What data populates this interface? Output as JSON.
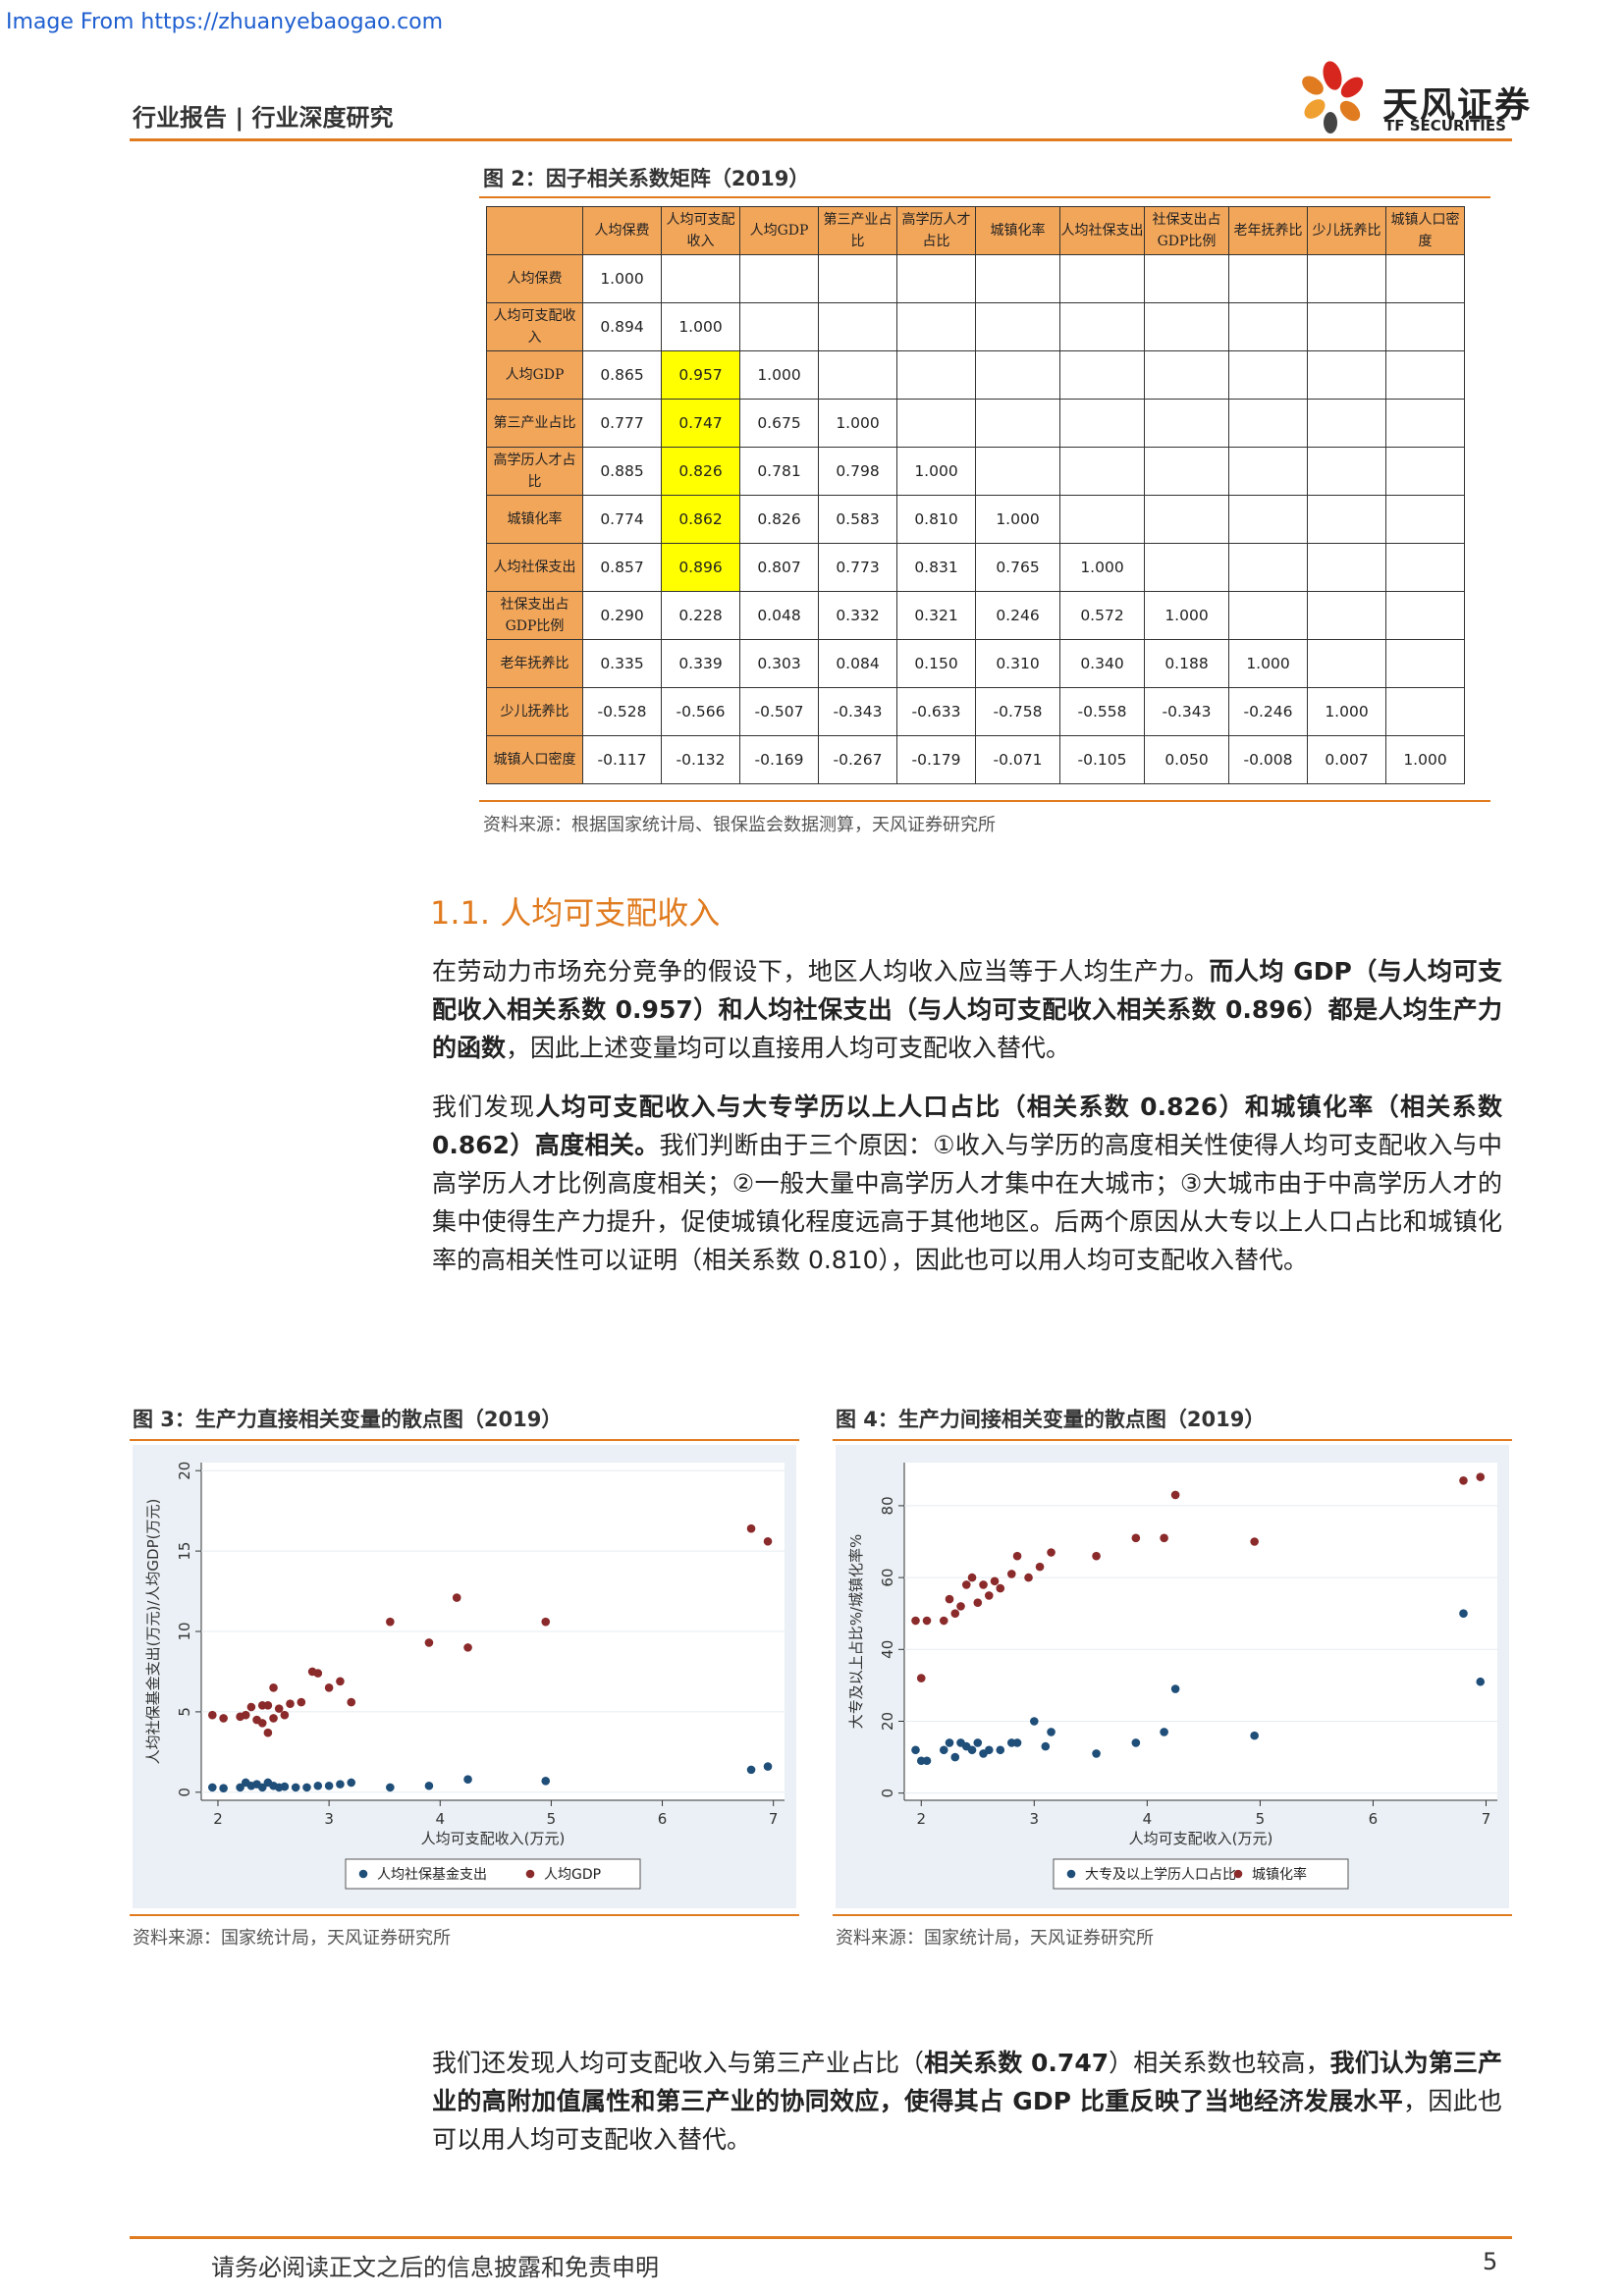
{
  "watermark": "Image From https://zhuanyebaogao.com",
  "header": {
    "left": "行业报告 | 行业深度研究",
    "logo_cn": "天风证券",
    "logo_en": "TF SECURITIES"
  },
  "fig2": {
    "title": "图 2：因子相关系数矩阵（2019）",
    "source": "资料来源：根据国家统计局、银保监会数据测算，天风证券研究所",
    "headers": [
      "人均保费",
      "人均可支配收入",
      "人均GDP",
      "第三产业占比",
      "高学历人才占比",
      "城镇化率",
      "人均社保支出",
      "社保支出占GDP比例",
      "老年抚养比",
      "少儿抚养比",
      "城镇人口密度"
    ],
    "rows": [
      {
        "label": "人均保费",
        "values": [
          "1.000"
        ]
      },
      {
        "label": "人均可支配收入",
        "values": [
          "0.894",
          "1.000"
        ]
      },
      {
        "label": "人均GDP",
        "values": [
          "0.865",
          "0.957",
          "1.000"
        ]
      },
      {
        "label": "第三产业占比",
        "values": [
          "0.777",
          "0.747",
          "0.675",
          "1.000"
        ]
      },
      {
        "label": "高学历人才占比",
        "values": [
          "0.885",
          "0.826",
          "0.781",
          "0.798",
          "1.000"
        ]
      },
      {
        "label": "城镇化率",
        "values": [
          "0.774",
          "0.862",
          "0.826",
          "0.583",
          "0.810",
          "1.000"
        ]
      },
      {
        "label": "人均社保支出",
        "values": [
          "0.857",
          "0.896",
          "0.807",
          "0.773",
          "0.831",
          "0.765",
          "1.000"
        ]
      },
      {
        "label": "社保支出占GDP比例",
        "values": [
          "0.290",
          "0.228",
          "0.048",
          "0.332",
          "0.321",
          "0.246",
          "0.572",
          "1.000"
        ]
      },
      {
        "label": "老年抚养比",
        "values": [
          "0.335",
          "0.339",
          "0.303",
          "0.084",
          "0.150",
          "0.310",
          "0.340",
          "0.188",
          "1.000"
        ]
      },
      {
        "label": "少儿抚养比",
        "values": [
          "-0.528",
          "-0.566",
          "-0.507",
          "-0.343",
          "-0.633",
          "-0.758",
          "-0.558",
          "-0.343",
          "-0.246",
          "1.000"
        ]
      },
      {
        "label": "城镇人口密度",
        "values": [
          "-0.117",
          "-0.132",
          "-0.169",
          "-0.267",
          "-0.179",
          "-0.071",
          "-0.105",
          "0.050",
          "-0.008",
          "0.007",
          "1.000"
        ]
      }
    ],
    "highlight_color": "#ffff00",
    "header_color": "#f2a65a"
  },
  "section": {
    "heading": "1.1. 人均可支配收入",
    "p1_parts": [
      {
        "t": "在劳动力市场充分竞争的假设下，地区人均收入应当等于人均生产力。",
        "b": false
      },
      {
        "t": "而人均 GDP（与人均可支配收入相关系数 0.957）和人均社保支出（与人均可支配收入相关系数 0.896）都是人均生产力的函数",
        "b": true
      },
      {
        "t": "，因此上述变量均可以直接用人均可支配收入替代。",
        "b": false
      }
    ],
    "p2_parts": [
      {
        "t": "我们发现",
        "b": false
      },
      {
        "t": "人均可支配收入与大专学历以上人口占比（相关系数 0.826）和城镇化率（相关系数 0.862）高度相关。",
        "b": true
      },
      {
        "t": "我们判断由于三个原因：①收入与学历的高度相关性使得人均可支配收入与中高学历人才比例高度相关；②一般大量中高学历人才集中在大城市；③大城市由于中高学历人才的集中使得生产力提升，促使城镇化程度远高于其他地区。后两个原因从大专以上人口占比和城镇化率的高相关性可以证明（相关系数 0.810），因此也可以用人均可支配收入替代。",
        "b": false
      }
    ],
    "p3_parts": [
      {
        "t": "我们还发现人均可支配收入与第三产业占比（",
        "b": false
      },
      {
        "t": "相关系数 0.747",
        "b": true
      },
      {
        "t": "）相关系数也较高，",
        "b": false
      },
      {
        "t": "我们认为第三产业的高附加值属性和第三产业的协同效应，使得其占 GDP 比重反映了当地经济发展水平",
        "b": true
      },
      {
        "t": "，因此也可以用人均可支配收入替代。",
        "b": false
      }
    ]
  },
  "fig3": {
    "title": "图 3：生产力直接相关变量的散点图（2019）",
    "source": "资料来源：国家统计局，天风证券研究所"
  },
  "fig4": {
    "title": "图 4：生产力间接相关变量的散点图（2019）",
    "source": "资料来源：国家统计局，天风证券研究所"
  },
  "chart_data": [
    {
      "type": "scatter",
      "xlabel": "人均可支配收入(万元)",
      "ylabel": "人均社保基金支出(万元)/人均GDP(万元)",
      "xticks": [
        2,
        3,
        4,
        5,
        6,
        7
      ],
      "yticks": [
        0,
        5,
        10,
        15,
        20
      ],
      "xlim": [
        1.85,
        7.1
      ],
      "ylim": [
        -0.5,
        20.5
      ],
      "legend": "bottom",
      "series": [
        {
          "name": "人均社保基金支出",
          "color": "#1f4e79",
          "points": [
            [
              1.95,
              0.3
            ],
            [
              2.05,
              0.25
            ],
            [
              2.2,
              0.3
            ],
            [
              2.25,
              0.6
            ],
            [
              2.3,
              0.4
            ],
            [
              2.35,
              0.5
            ],
            [
              2.4,
              0.3
            ],
            [
              2.45,
              0.6
            ],
            [
              2.5,
              0.4
            ],
            [
              2.55,
              0.3
            ],
            [
              2.6,
              0.35
            ],
            [
              2.7,
              0.3
            ],
            [
              2.8,
              0.3
            ],
            [
              2.9,
              0.4
            ],
            [
              3.0,
              0.4
            ],
            [
              3.1,
              0.5
            ],
            [
              3.2,
              0.6
            ],
            [
              3.55,
              0.3
            ],
            [
              3.9,
              0.4
            ],
            [
              4.25,
              0.8
            ],
            [
              4.95,
              0.7
            ],
            [
              6.8,
              1.4
            ],
            [
              6.95,
              1.6
            ]
          ]
        },
        {
          "name": "人均GDP",
          "color": "#8b2a2a",
          "points": [
            [
              1.95,
              4.8
            ],
            [
              2.05,
              4.6
            ],
            [
              2.2,
              4.7
            ],
            [
              2.25,
              4.8
            ],
            [
              2.3,
              5.3
            ],
            [
              2.35,
              4.5
            ],
            [
              2.4,
              5.4
            ],
            [
              2.4,
              4.3
            ],
            [
              2.45,
              3.7
            ],
            [
              2.45,
              5.4
            ],
            [
              2.5,
              6.5
            ],
            [
              2.5,
              4.6
            ],
            [
              2.55,
              5.2
            ],
            [
              2.6,
              4.8
            ],
            [
              2.65,
              5.5
            ],
            [
              2.75,
              5.6
            ],
            [
              2.85,
              7.5
            ],
            [
              2.9,
              7.4
            ],
            [
              3.0,
              6.5
            ],
            [
              3.1,
              6.9
            ],
            [
              3.2,
              5.6
            ],
            [
              3.55,
              10.6
            ],
            [
              3.9,
              9.3
            ],
            [
              4.15,
              12.1
            ],
            [
              4.25,
              9.0
            ],
            [
              4.95,
              10.6
            ],
            [
              6.8,
              16.4
            ],
            [
              6.95,
              15.6
            ]
          ]
        }
      ]
    },
    {
      "type": "scatter",
      "xlabel": "人均可支配收入(万元)",
      "ylabel": "大专及以上占比%/城镇化率%",
      "xticks": [
        2,
        3,
        4,
        5,
        6,
        7
      ],
      "yticks": [
        0,
        20,
        40,
        60,
        80
      ],
      "xlim": [
        1.85,
        7.1
      ],
      "ylim": [
        -2,
        92
      ],
      "legend": "bottom",
      "series": [
        {
          "name": "大专及以上学历人口占比",
          "color": "#1f4e79",
          "points": [
            [
              1.95,
              12
            ],
            [
              2.0,
              9
            ],
            [
              2.05,
              9
            ],
            [
              2.2,
              12
            ],
            [
              2.25,
              14
            ],
            [
              2.3,
              10
            ],
            [
              2.35,
              14
            ],
            [
              2.4,
              13
            ],
            [
              2.45,
              12
            ],
            [
              2.5,
              14
            ],
            [
              2.55,
              11
            ],
            [
              2.6,
              12
            ],
            [
              2.7,
              12
            ],
            [
              2.8,
              14
            ],
            [
              2.85,
              14
            ],
            [
              3.0,
              20
            ],
            [
              3.1,
              13
            ],
            [
              3.15,
              17
            ],
            [
              3.55,
              11
            ],
            [
              3.9,
              14
            ],
            [
              4.15,
              17
            ],
            [
              4.25,
              29
            ],
            [
              4.95,
              16
            ],
            [
              6.8,
              50
            ],
            [
              6.95,
              31
            ]
          ]
        },
        {
          "name": "城镇化率",
          "color": "#8b2a2a",
          "points": [
            [
              1.95,
              48
            ],
            [
              2.0,
              32
            ],
            [
              2.05,
              48
            ],
            [
              2.2,
              48
            ],
            [
              2.25,
              54
            ],
            [
              2.3,
              50
            ],
            [
              2.35,
              52
            ],
            [
              2.4,
              58
            ],
            [
              2.45,
              60
            ],
            [
              2.5,
              53
            ],
            [
              2.55,
              58
            ],
            [
              2.6,
              55
            ],
            [
              2.65,
              59
            ],
            [
              2.7,
              57
            ],
            [
              2.8,
              61
            ],
            [
              2.85,
              66
            ],
            [
              2.95,
              60
            ],
            [
              3.05,
              63
            ],
            [
              3.15,
              67
            ],
            [
              3.55,
              66
            ],
            [
              3.9,
              71
            ],
            [
              4.15,
              71
            ],
            [
              4.25,
              83
            ],
            [
              4.95,
              70
            ],
            [
              6.8,
              87
            ],
            [
              6.95,
              88
            ]
          ]
        }
      ]
    }
  ],
  "footer": {
    "text": "请务必阅读正文之后的信息披露和免责申明",
    "page": "5"
  }
}
